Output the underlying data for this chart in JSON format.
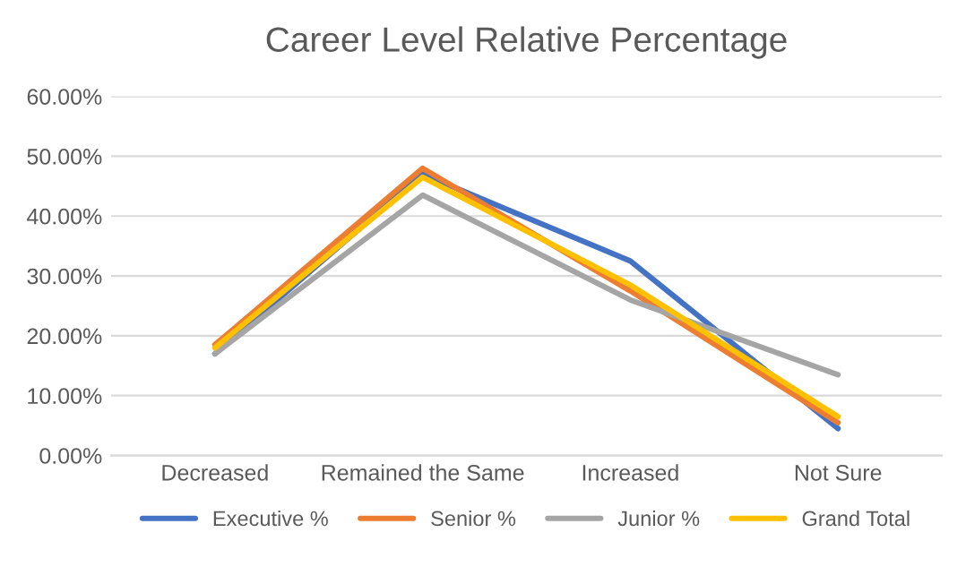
{
  "chart_data": {
    "type": "line",
    "title": "Career Level Relative Percentage",
    "categories": [
      "Decreased",
      "Remained the Same",
      "Increased",
      "Not Sure"
    ],
    "series": [
      {
        "name": "Executive %",
        "color": "#4472c4",
        "values": [
          17.0,
          47.0,
          32.5,
          4.5
        ]
      },
      {
        "name": "Senior %",
        "color": "#ed7d31",
        "values": [
          18.5,
          48.0,
          27.5,
          5.5
        ]
      },
      {
        "name": "Junior %",
        "color": "#a5a5a5",
        "values": [
          17.0,
          43.5,
          26.0,
          13.5
        ]
      },
      {
        "name": "Grand Total",
        "color": "#ffc000",
        "values": [
          18.0,
          46.5,
          28.5,
          6.5
        ]
      }
    ],
    "ylim": [
      0,
      60
    ],
    "yticks": [
      {
        "value": 0,
        "label": "0.00%"
      },
      {
        "value": 10,
        "label": "10.00%"
      },
      {
        "value": 20,
        "label": "20.00%"
      },
      {
        "value": 30,
        "label": "30.00%"
      },
      {
        "value": 40,
        "label": "40.00%"
      },
      {
        "value": 50,
        "label": "50.00%"
      },
      {
        "value": 60,
        "label": "60.00%"
      }
    ],
    "grid": "y",
    "legend": "bottom",
    "marker": "none",
    "line_style": "solid"
  }
}
